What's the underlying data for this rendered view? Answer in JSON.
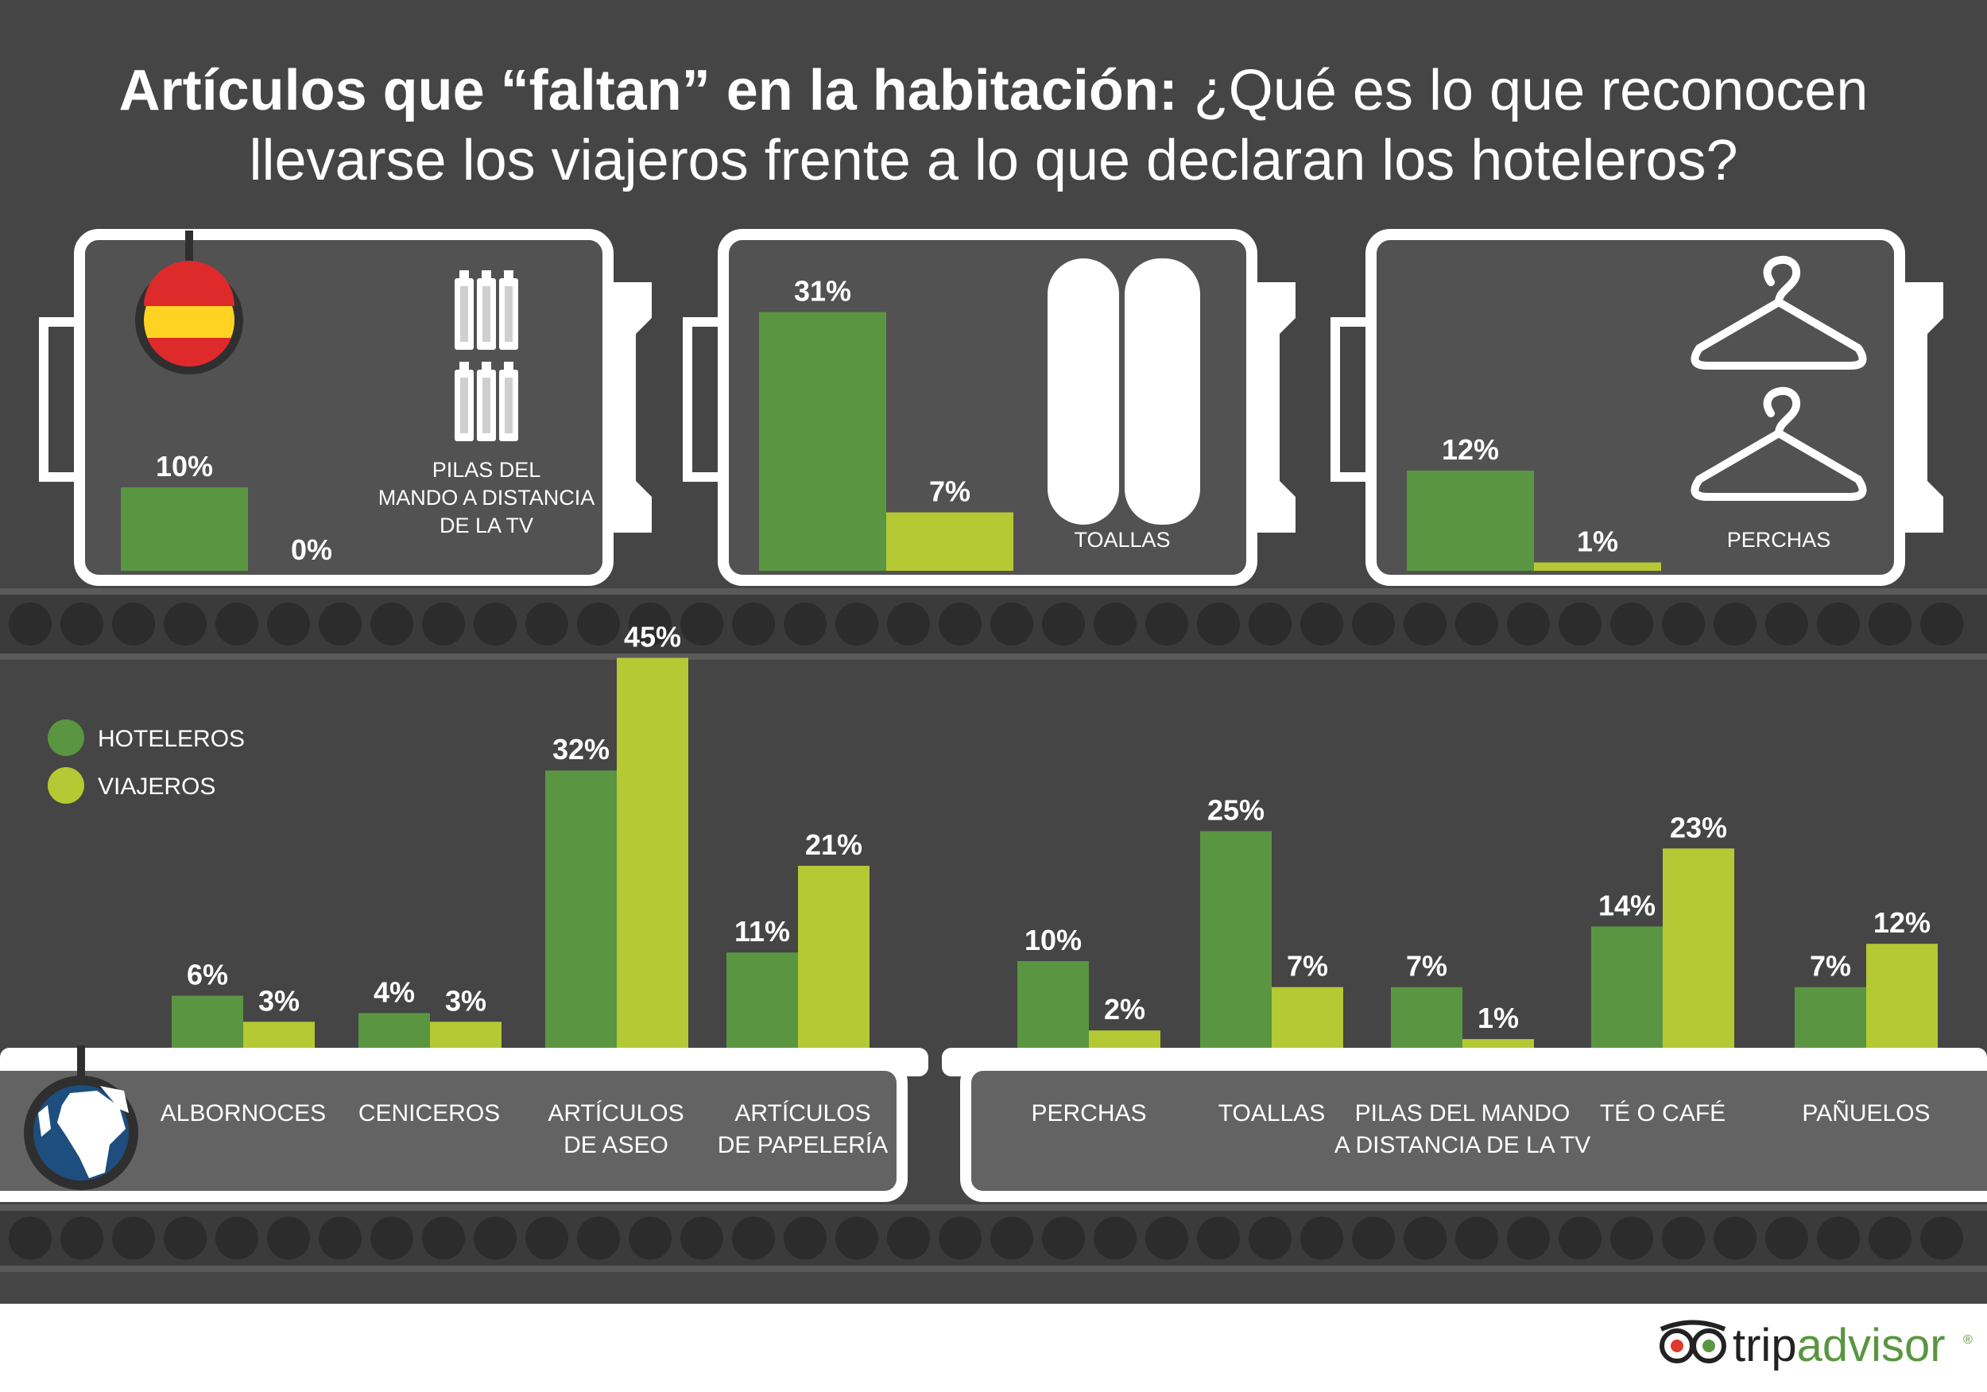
{
  "title": {
    "bold": "Artículos que “faltan” en la habitación:",
    "line1_rest": "¿Qué es lo que reconocen",
    "line2": "llevarse los viajeros frente a lo que declaran los hoteleros?"
  },
  "legend": [
    {
      "name": "HOTELEROS",
      "color": "#5a9641"
    },
    {
      "name": "VIAJEROS",
      "color": "#b5c934"
    }
  ],
  "icons": [
    "spain-flag-icon",
    "battery-icon",
    "towel-icon",
    "hanger-icon",
    "globe-icon",
    "tripadvisor-owl-icon"
  ],
  "colors": {
    "background": "#454545",
    "hoteleros": "#5a9641",
    "viajeros": "#b5c934",
    "panel": "#525252",
    "frame": "#ffffff"
  },
  "brand": {
    "name": "tripadvisor",
    "trademark": "®"
  },
  "chart_data": [
    {
      "type": "bar",
      "title": "España",
      "categories": [
        "PILAS DEL MANDO A DISTANCIA DE LA TV",
        "TOALLAS",
        "PERCHAS"
      ],
      "series": [
        {
          "name": "HOTELEROS",
          "values": [
            10,
            31,
            12
          ],
          "labels": [
            "10%",
            "31%",
            "12%"
          ]
        },
        {
          "name": "VIAJEROS",
          "values": [
            0,
            7,
            1
          ],
          "labels": [
            "0%",
            "7%",
            "1%"
          ]
        }
      ],
      "category_lines": [
        [
          "PILAS DEL",
          "MANDO A DISTANCIA",
          "DE LA TV"
        ],
        [
          "TOALLAS"
        ],
        [
          "PERCHAS"
        ]
      ],
      "ylim": [
        0,
        35
      ]
    },
    {
      "type": "bar",
      "title": "Global",
      "categories": [
        "ALBORNOCES",
        "CENICEROS",
        "ARTÍCULOS DE ASEO",
        "ARTÍCULOS DE PAPELERÍA",
        "PERCHAS",
        "TOALLAS",
        "PILAS DEL MANDO A DISTANCIA DE LA TV",
        "TÉ O CAFÉ",
        "PAÑUELOS"
      ],
      "category_lines": [
        [
          "ALBORNOCES"
        ],
        [
          "CENICEROS"
        ],
        [
          "ARTÍCULOS",
          "DE ASEO"
        ],
        [
          "ARTÍCULOS",
          "DE PAPELERÍA"
        ],
        [
          "PERCHAS"
        ],
        [
          "TOALLAS"
        ],
        [
          "PILAS DEL MANDO",
          "A DISTANCIA DE LA TV"
        ],
        [
          "TÉ O CAFÉ"
        ],
        [
          "PAÑUELOS"
        ]
      ],
      "series": [
        {
          "name": "HOTELEROS",
          "values": [
            6,
            4,
            32,
            11,
            10,
            25,
            7,
            14,
            7
          ],
          "labels": [
            "6%",
            "4%",
            "32%",
            "11%",
            "10%",
            "25%",
            "7%",
            "14%",
            "7%"
          ]
        },
        {
          "name": "VIAJEROS",
          "values": [
            3,
            3,
            45,
            21,
            2,
            7,
            1,
            23,
            12
          ],
          "labels": [
            "3%",
            "3%",
            "45%",
            "21%",
            "2%",
            "7%",
            "1%",
            "23%",
            "12%"
          ]
        }
      ],
      "ylim": [
        0,
        50
      ],
      "legend_position": "top-left"
    }
  ]
}
